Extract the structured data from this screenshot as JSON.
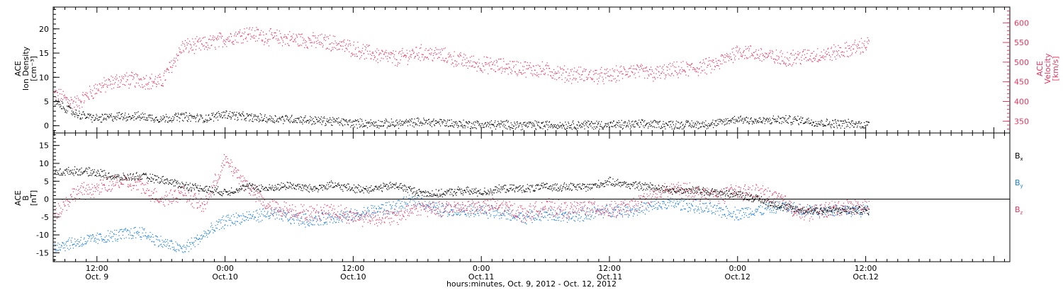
{
  "colors": {
    "black": "#000000",
    "pink": "#e8365e",
    "blue": "#1a7fe0",
    "axis": "#000000"
  },
  "x_axis": {
    "title": "hours:minutes, Oct. 9, 2012 - Oct. 12, 2012",
    "range_hours": [
      -4.1,
      85.5
    ],
    "ticks": [
      {
        "h": 0,
        "time": "12:00",
        "date": "Oct. 9"
      },
      {
        "h": 12,
        "time": "0:00",
        "date": "Oct.10"
      },
      {
        "h": 24,
        "time": "12:00",
        "date": "Oct.10"
      },
      {
        "h": 36,
        "time": "0:00",
        "date": "Oct.11"
      },
      {
        "h": 48,
        "time": "12:00",
        "date": "Oct.11"
      },
      {
        "h": 60,
        "time": "0:00",
        "date": "Oct.12"
      },
      {
        "h": 72,
        "time": "12:00",
        "date": "Oct.12"
      }
    ]
  },
  "chart_data": [
    {
      "type": "scatter",
      "ylabel_left": [
        "ACE",
        "Ion Density",
        "[cm⁻³]"
      ],
      "ylabel_right": [
        "ACE",
        "Velocity",
        "[km/s]"
      ],
      "ylim_left": [
        -1.5,
        24.5
      ],
      "ylim_right": [
        320,
        640
      ],
      "yticks_left": [
        0,
        5,
        10,
        15,
        20
      ],
      "yticks_right": [
        350,
        400,
        450,
        500,
        550,
        600
      ],
      "series": [
        {
          "axis": "left",
          "color": "black",
          "x": [
            -4,
            -2,
            0,
            2,
            4,
            6,
            8,
            10,
            12,
            14,
            16,
            18,
            20,
            22,
            24,
            26,
            28,
            30,
            32,
            34,
            36,
            38,
            40,
            42,
            44,
            46,
            48,
            50,
            52,
            54,
            56,
            58,
            60,
            62,
            64,
            66,
            68,
            70,
            72
          ],
          "values": [
            5,
            2.5,
            1.5,
            2,
            2,
            1.5,
            2,
            1.5,
            2.5,
            1.8,
            1.5,
            1.5,
            1.2,
            1,
            0.6,
            0.5,
            0.5,
            0.8,
            0.8,
            0.4,
            0.3,
            0.3,
            0.2,
            0.2,
            0.2,
            0.3,
            0.2,
            0.3,
            0.4,
            0.3,
            0.3,
            0.5,
            1.5,
            1,
            1.3,
            1.2,
            0.6,
            0.5,
            0.3
          ]
        },
        {
          "axis": "right",
          "color": "pink",
          "x": [
            -4,
            -2,
            0,
            2,
            4,
            6,
            8,
            10,
            12,
            14,
            16,
            18,
            20,
            22,
            24,
            26,
            28,
            30,
            32,
            34,
            36,
            38,
            40,
            42,
            44,
            46,
            48,
            50,
            52,
            54,
            56,
            58,
            60,
            62,
            64,
            66,
            68,
            70,
            72
          ],
          "values": [
            420,
            395,
            435,
            455,
            455,
            450,
            540,
            545,
            560,
            575,
            565,
            560,
            555,
            550,
            535,
            520,
            510,
            525,
            520,
            505,
            495,
            490,
            485,
            480,
            470,
            468,
            465,
            480,
            470,
            480,
            485,
            495,
            530,
            520,
            510,
            515,
            520,
            530,
            545
          ]
        }
      ]
    },
    {
      "type": "scatter",
      "ylabel_left": [
        "ACE",
        "B",
        "[nT]"
      ],
      "ylim_left": [
        -17.5,
        18.5
      ],
      "yticks_left": [
        -15,
        -10,
        -5,
        0,
        5,
        10,
        15
      ],
      "zero_line": true,
      "legend_position": "right",
      "legend": [
        {
          "base": "B",
          "sub": "x",
          "color": "black"
        },
        {
          "base": "B",
          "sub": "y",
          "color": "blue"
        },
        {
          "base": "B",
          "sub": "z",
          "color": "pink"
        }
      ],
      "series": [
        {
          "name": "Bx",
          "color": "black",
          "x": [
            -4,
            -2,
            0,
            2,
            4,
            6,
            8,
            10,
            12,
            14,
            16,
            18,
            20,
            22,
            24,
            26,
            28,
            30,
            32,
            34,
            36,
            38,
            40,
            42,
            44,
            46,
            48,
            50,
            52,
            54,
            56,
            58,
            60,
            62,
            64,
            66,
            68,
            70,
            72
          ],
          "values": [
            7.5,
            8,
            7.5,
            6,
            6.5,
            5.5,
            4,
            3,
            2,
            3.5,
            3,
            4,
            3,
            4,
            3,
            3,
            4,
            2,
            1.5,
            2.5,
            2,
            3,
            3,
            3.5,
            3.5,
            3.5,
            5,
            4,
            3.5,
            2.5,
            2.5,
            2,
            1.5,
            0,
            -2,
            -3,
            -3,
            -3,
            -3
          ]
        },
        {
          "name": "By",
          "color": "blue",
          "x": [
            -4,
            -2,
            0,
            2,
            4,
            6,
            8,
            10,
            12,
            14,
            16,
            18,
            20,
            22,
            24,
            26,
            28,
            30,
            32,
            34,
            36,
            38,
            40,
            42,
            44,
            46,
            48,
            50,
            52,
            54,
            56,
            58,
            60,
            62,
            64,
            66,
            68,
            70,
            72
          ],
          "values": [
            -13,
            -12,
            -11,
            -10,
            -9,
            -12,
            -14,
            -10,
            -6,
            -5,
            -4,
            -5,
            -6,
            -5,
            -4.5,
            -3,
            -2,
            0,
            -3,
            -3,
            -3,
            -4,
            -5,
            -4,
            -5,
            -4,
            -3,
            -3,
            -2,
            -1,
            -2,
            -3,
            -4,
            -3,
            -2,
            -3,
            -3,
            -3,
            -3
          ]
        },
        {
          "name": "Bz",
          "color": "pink",
          "x": [
            -4,
            -2,
            0,
            2,
            4,
            6,
            8,
            10,
            12,
            14,
            16,
            18,
            20,
            22,
            24,
            26,
            28,
            30,
            32,
            34,
            36,
            38,
            40,
            42,
            44,
            46,
            48,
            50,
            52,
            54,
            56,
            58,
            60,
            62,
            64,
            66,
            68,
            70,
            72
          ],
          "values": [
            -4,
            2,
            3,
            5,
            4,
            0,
            2,
            -2,
            11,
            4,
            -2,
            -3,
            -4,
            -3,
            -5,
            -5,
            -5,
            -2,
            -3,
            -2,
            -2,
            -2,
            -4,
            -2,
            -3,
            -2,
            -3,
            -2,
            1,
            3,
            2,
            1,
            2,
            2,
            0,
            -4,
            -3,
            -2,
            -2
          ]
        }
      ]
    }
  ]
}
